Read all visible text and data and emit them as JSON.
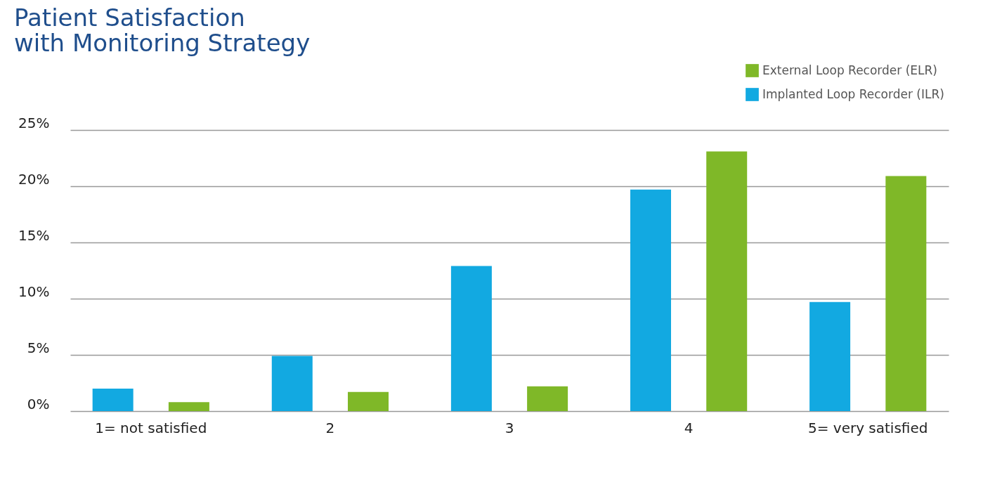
{
  "chart_data": {
    "type": "bar",
    "title": [
      "Patient Satisfaction",
      "with Monitoring Strategy"
    ],
    "categories": [
      "1= not satisfied",
      "2",
      "3",
      "4",
      "5= very satisfied"
    ],
    "series": [
      {
        "name": "Implanted Loop Recorder (ILR)",
        "color": "#12a9e1",
        "values": [
          2.0,
          4.9,
          12.9,
          19.7,
          9.7
        ]
      },
      {
        "name": "External Loop Recorder (ELR)",
        "color": "#7fb828",
        "values": [
          0.8,
          1.7,
          2.2,
          23.1,
          20.9
        ]
      }
    ],
    "ylim": [
      0,
      25
    ],
    "yticks": [
      {
        "value": 0,
        "label": "0%"
      },
      {
        "value": 5,
        "label": "5%"
      },
      {
        "value": 10,
        "label": "10%"
      },
      {
        "value": 15,
        "label": "15%"
      },
      {
        "value": 20,
        "label": "20%"
      },
      {
        "value": 25,
        "label": "25%"
      }
    ],
    "grid": "y",
    "legend": "top right"
  }
}
